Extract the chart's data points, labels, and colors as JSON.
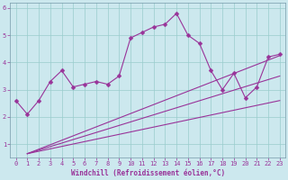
{
  "xlabel": "Windchill (Refroidissement éolien,°C)",
  "x_data": [
    0,
    1,
    2,
    3,
    4,
    5,
    6,
    7,
    8,
    9,
    10,
    11,
    12,
    13,
    14,
    15,
    16,
    17,
    18,
    19,
    20,
    21,
    22,
    23
  ],
  "main_y": [
    2.6,
    2.1,
    2.6,
    3.3,
    3.7,
    3.1,
    3.2,
    3.3,
    3.2,
    3.5,
    4.9,
    5.1,
    5.3,
    5.4,
    5.8,
    5.0,
    4.7,
    3.7,
    3.0,
    3.6,
    2.7,
    3.1,
    4.2,
    4.3
  ],
  "line2_x": [
    1,
    23
  ],
  "line2_y": [
    0.65,
    4.25
  ],
  "line3_x": [
    1,
    23
  ],
  "line3_y": [
    0.65,
    2.6
  ],
  "line4_x": [
    1,
    23
  ],
  "line4_y": [
    0.65,
    3.5
  ],
  "bg_color": "#cce8ee",
  "line_color": "#993399",
  "grid_color": "#99cccc",
  "ylim": [
    0.5,
    6.2
  ],
  "xlim": [
    -0.5,
    23.5
  ],
  "yticks": [
    1,
    2,
    3,
    4,
    5,
    6
  ],
  "xticks": [
    0,
    1,
    2,
    3,
    4,
    5,
    6,
    7,
    8,
    9,
    10,
    11,
    12,
    13,
    14,
    15,
    16,
    17,
    18,
    19,
    20,
    21,
    22,
    23
  ],
  "xlabel_fontsize": 5.5,
  "tick_fontsize": 5,
  "marker_size": 2.5,
  "line_width": 0.8
}
